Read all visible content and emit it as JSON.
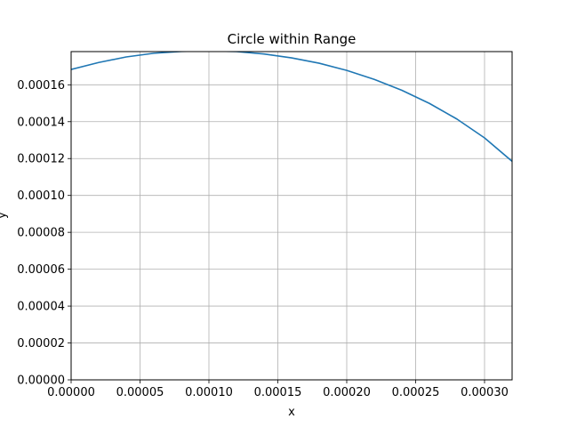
{
  "chart_data": {
    "type": "line",
    "title": "Circle within Range",
    "xlabel": "x",
    "ylabel": "y",
    "xlim": [
      0,
      0.00032
    ],
    "ylim": [
      0,
      0.000178
    ],
    "grid": true,
    "x_ticks": [
      0,
      5e-05,
      0.0001,
      0.00015,
      0.0002,
      0.00025,
      0.0003
    ],
    "x_tick_labels": [
      "0.00000",
      "0.00005",
      "0.00010",
      "0.00015",
      "0.00020",
      "0.00025",
      "0.00030"
    ],
    "y_ticks": [
      0,
      2e-05,
      4e-05,
      6e-05,
      8e-05,
      0.0001,
      0.00012,
      0.00014,
      0.00016
    ],
    "y_tick_labels": [
      "0.00000",
      "0.00002",
      "0.00004",
      "0.00006",
      "0.00008",
      "0.00010",
      "0.00012",
      "0.00014",
      "0.00016"
    ],
    "series": [
      {
        "color": "#1f77b4",
        "x": [
          0,
          2e-05,
          4e-05,
          6e-05,
          8e-05,
          0.0001,
          0.00012,
          0.00014,
          0.00016,
          0.00018,
          0.0002,
          0.00022,
          0.00024,
          0.00026,
          0.00028,
          0.0003,
          0.00032
        ],
        "y": [
          0.0001683,
          0.0001721,
          0.0001751,
          0.0001771,
          0.0001781,
          0.0001784,
          0.000178,
          0.0001767,
          0.0001746,
          0.0001717,
          0.0001678,
          0.0001629,
          0.000157,
          0.0001499,
          0.0001414,
          0.0001312,
          0.0001185
        ]
      }
    ]
  }
}
